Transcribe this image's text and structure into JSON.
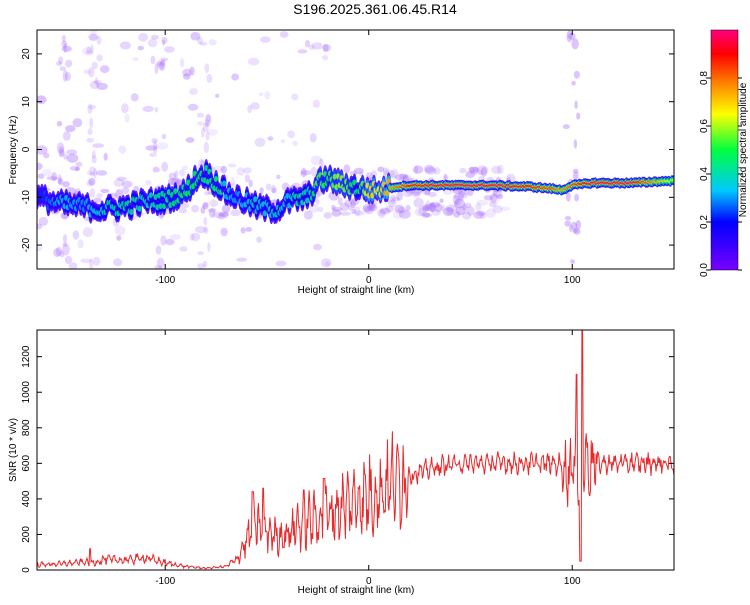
{
  "figure_title": "S196.2025.361.06.45.R14",
  "colors": {
    "snr_line": "#e8282a",
    "ridge_high": "#ff2a1a",
    "ridge_mid": "#00d8c8",
    "ridge_low": "#2a00ff",
    "noise": "#9b59ff"
  },
  "chart_data": [
    {
      "type": "heatmap",
      "title": "S196.2025.361.06.45.R14",
      "xlabel": "Height of straight line (km)",
      "ylabel": "Frequency (Hz)",
      "xlim": [
        -163,
        150
      ],
      "ylim": [
        -25,
        25
      ],
      "xticks": [
        -100,
        0,
        100
      ],
      "yticks": [
        -20,
        -10,
        0,
        10,
        20
      ],
      "colorbar": {
        "label": "Normalized spectral amplitude",
        "range": [
          0,
          1
        ],
        "ticks": [
          0,
          0.2,
          0.4,
          0.6,
          0.8
        ],
        "colormap": [
          "#7a00ff",
          "#0000ff",
          "#00c8ff",
          "#00ff40",
          "#ffff00",
          "#ff8000",
          "#ff0000",
          "#ff0080"
        ]
      },
      "ridge": {
        "x": [
          -163,
          -150,
          -140,
          -130,
          -120,
          -110,
          -100,
          -90,
          -85,
          -80,
          -75,
          -70,
          -65,
          -60,
          -55,
          -50,
          -45,
          -40,
          -35,
          -30,
          -25,
          -20,
          -15,
          -10,
          -5,
          0,
          5,
          10,
          20,
          40,
          60,
          80,
          90,
          95,
          100,
          110,
          130,
          150
        ],
        "freq": [
          -10,
          -11.5,
          -12,
          -12.5,
          -12,
          -11,
          -10.5,
          -9,
          -6,
          -5,
          -7,
          -9,
          -10,
          -11,
          -12,
          -12.5,
          -12.5,
          -11,
          -10.5,
          -10,
          -7,
          -6,
          -7,
          -7.5,
          -8,
          -8.5,
          -8.5,
          -8,
          -7.5,
          -7.5,
          -7.5,
          -7.8,
          -8.2,
          -8.5,
          -7.5,
          -7,
          -7,
          -6.5
        ],
        "amplitude": [
          0.2,
          0.35,
          0.3,
          0.4,
          0.45,
          0.4,
          0.45,
          0.5,
          0.5,
          0.45,
          0.5,
          0.35,
          0.3,
          0.35,
          0.4,
          0.35,
          0.4,
          0.35,
          0.45,
          0.4,
          0.55,
          0.5,
          0.6,
          0.55,
          0.45,
          0.7,
          0.65,
          0.75,
          0.9,
          0.95,
          0.95,
          0.9,
          0.85,
          0.75,
          0.85,
          0.95,
          0.95,
          0.6
        ]
      }
    },
    {
      "type": "line",
      "xlabel": "Height of straight line (km)",
      "ylabel": "SNR (10 * v/v)",
      "xlim": [
        -163,
        150
      ],
      "ylim": [
        0,
        1350
      ],
      "xticks": [
        -100,
        0,
        100
      ],
      "yticks": [
        0,
        200,
        400,
        600,
        800,
        1000,
        1200
      ],
      "series": [
        {
          "name": "SNR",
          "x": [
            -163,
            -150,
            -140,
            -135,
            -130,
            -120,
            -110,
            -100,
            -90,
            -80,
            -75,
            -70,
            -65,
            -62,
            -60,
            -55,
            -50,
            -45,
            -40,
            -35,
            -30,
            -25,
            -20,
            -15,
            -10,
            -5,
            0,
            5,
            10,
            20,
            30,
            40,
            50,
            60,
            70,
            80,
            90,
            95,
            98,
            100,
            102,
            104,
            106,
            108,
            110,
            120,
            130,
            140,
            150
          ],
          "y": [
            30,
            35,
            45,
            40,
            60,
            55,
            70,
            40,
            20,
            10,
            15,
            20,
            60,
            120,
            170,
            250,
            220,
            190,
            200,
            260,
            280,
            290,
            310,
            340,
            370,
            400,
            410,
            430,
            480,
            530,
            570,
            595,
            600,
            600,
            600,
            600,
            600,
            590,
            550,
            600,
            550,
            600,
            640,
            620,
            600,
            600,
            600,
            600,
            600
          ]
        }
      ],
      "annotations": {
        "spikes": [
          {
            "x": -137,
            "y": 120
          },
          {
            "x": -57,
            "y": 440
          },
          {
            "x": -52,
            "y": 460
          },
          {
            "x": -32,
            "y": 450
          },
          {
            "x": -22,
            "y": 515
          },
          {
            "x": 102,
            "y": 1100
          },
          {
            "x": 105,
            "y": 1350
          },
          {
            "x": 104,
            "y": 50
          }
        ]
      }
    }
  ]
}
